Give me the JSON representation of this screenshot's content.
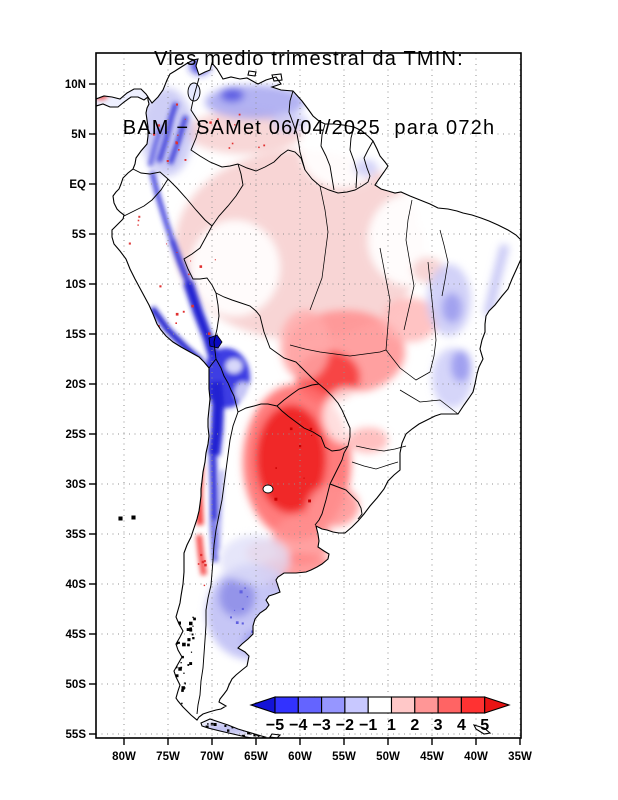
{
  "title": {
    "line1": "Vies medio trimestral da TMIN:",
    "line2": "BAM − SAMet 06/04/2025  para 072h"
  },
  "axes": {
    "lat_labels": [
      "10N",
      "5N",
      "EQ",
      "5S",
      "10S",
      "15S",
      "20S",
      "25S",
      "30S",
      "35S",
      "40S",
      "45S",
      "50S",
      "55S"
    ],
    "lon_labels": [
      "80W",
      "75W",
      "70W",
      "65W",
      "60W",
      "55W",
      "50W",
      "45W",
      "40W",
      "35W"
    ]
  },
  "colorbar": {
    "labels": [
      "−5",
      "−4",
      "−3",
      "−2",
      "−1",
      "1",
      "2",
      "3",
      "4",
      "5"
    ],
    "segment_colors": [
      "#3232ff",
      "#6464ff",
      "#9696ff",
      "#c8c8ff",
      "#ffffff",
      "#ffc8c8",
      "#ff9696",
      "#ff6464",
      "#ff3232"
    ],
    "arrow_left_color": "#1414d7",
    "arrow_right_color": "#e81414",
    "min": -5,
    "max": 5
  }
}
